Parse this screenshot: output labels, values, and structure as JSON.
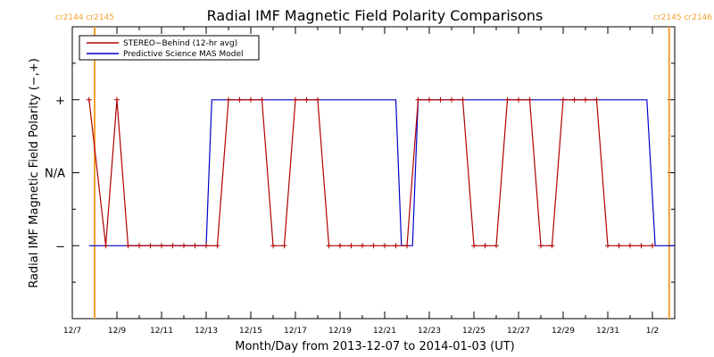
{
  "chart_data": {
    "type": "line",
    "title": "Radial IMF Magnetic Field Polarity Comparisons",
    "xlabel": "Month/Day from 2013-12-07 to 2014-01-03 (UT)",
    "ylabel": "Radial IMF Magnetic Field Polarity (−,+)",
    "x_start": "2013-12-07",
    "x_end": "2014-01-03",
    "xlim": [
      "2013-12-07",
      "2014-01-03"
    ],
    "ylim": [
      -2,
      2
    ],
    "x_tick_labels": [
      "12/7",
      "12/9",
      "12/11",
      "12/13",
      "12/15",
      "12/17",
      "12/19",
      "12/21",
      "12/23",
      "12/25",
      "12/27",
      "12/29",
      "12/31",
      "1/2"
    ],
    "y_ticks": [
      {
        "value": 1,
        "label": "+"
      },
      {
        "value": 0,
        "label": "N/A"
      },
      {
        "value": -1,
        "label": "−"
      }
    ],
    "rotation_markers": [
      {
        "date": "2013-12-08 00:00",
        "label": "cr2144 cr2145",
        "color": "#f5a030"
      },
      {
        "date": "2014-01-02 18:00",
        "label": "cr2145 cr2146",
        "color": "#f5a030"
      }
    ],
    "legend": {
      "position": "top-left"
    },
    "series": [
      {
        "name": "STEREO−Behind (12-hr avg)",
        "color": "#b00000",
        "marker": "+",
        "points": [
          [
            "2013-12-07 18:00",
            1
          ],
          [
            "2013-12-08 12:00",
            -1
          ],
          [
            "2013-12-09 00:00",
            1
          ],
          [
            "2013-12-09 12:00",
            -1
          ],
          [
            "2013-12-10 00:00",
            -1
          ],
          [
            "2013-12-10 12:00",
            -1
          ],
          [
            "2013-12-11 00:00",
            -1
          ],
          [
            "2013-12-11 12:00",
            -1
          ],
          [
            "2013-12-12 00:00",
            -1
          ],
          [
            "2013-12-12 12:00",
            -1
          ],
          [
            "2013-12-13 00:00",
            -1
          ],
          [
            "2013-12-13 12:00",
            -1
          ],
          [
            "2013-12-14 00:00",
            1
          ],
          [
            "2013-12-14 12:00",
            1
          ],
          [
            "2013-12-15 00:00",
            1
          ],
          [
            "2013-12-15 12:00",
            1
          ],
          [
            "2013-12-16 00:00",
            -1
          ],
          [
            "2013-12-16 12:00",
            -1
          ],
          [
            "2013-12-17 00:00",
            1
          ],
          [
            "2013-12-17 12:00",
            1
          ],
          [
            "2013-12-18 00:00",
            1
          ],
          [
            "2013-12-18 12:00",
            -1
          ],
          [
            "2013-12-19 00:00",
            -1
          ],
          [
            "2013-12-19 12:00",
            -1
          ],
          [
            "2013-12-20 00:00",
            -1
          ],
          [
            "2013-12-20 12:00",
            -1
          ],
          [
            "2013-12-21 00:00",
            -1
          ],
          [
            "2013-12-21 12:00",
            -1
          ],
          [
            "2013-12-22 00:00",
            -1
          ],
          [
            "2013-12-22 12:00",
            1
          ],
          [
            "2013-12-23 00:00",
            1
          ],
          [
            "2013-12-23 12:00",
            1
          ],
          [
            "2013-12-24 00:00",
            1
          ],
          [
            "2013-12-24 12:00",
            1
          ],
          [
            "2013-12-25 00:00",
            -1
          ],
          [
            "2013-12-25 12:00",
            -1
          ],
          [
            "2013-12-26 00:00",
            -1
          ],
          [
            "2013-12-26 12:00",
            1
          ],
          [
            "2013-12-27 00:00",
            1
          ],
          [
            "2013-12-27 12:00",
            1
          ],
          [
            "2013-12-28 00:00",
            -1
          ],
          [
            "2013-12-28 12:00",
            -1
          ],
          [
            "2013-12-29 00:00",
            1
          ],
          [
            "2013-12-29 12:00",
            1
          ],
          [
            "2013-12-30 00:00",
            1
          ],
          [
            "2013-12-30 12:00",
            1
          ],
          [
            "2013-12-31 00:00",
            -1
          ],
          [
            "2013-12-31 12:00",
            -1
          ],
          [
            "2014-01-01 00:00",
            -1
          ],
          [
            "2014-01-01 12:00",
            -1
          ],
          [
            "2014-01-02 00:00",
            -1
          ]
        ]
      },
      {
        "name": "Predictive Science MAS Model",
        "color": "#0000cc",
        "marker": "none",
        "points": [
          [
            "2013-12-07 18:00",
            -1
          ],
          [
            "2013-12-13 00:00",
            -1
          ],
          [
            "2013-12-13 06:00",
            1
          ],
          [
            "2013-12-21 12:00",
            1
          ],
          [
            "2013-12-21 18:00",
            -1
          ],
          [
            "2013-12-22 06:00",
            -1
          ],
          [
            "2013-12-22 12:00",
            1
          ],
          [
            "2014-01-01 18:00",
            1
          ],
          [
            "2014-01-02 03:00",
            -1
          ],
          [
            "2014-01-03 00:00",
            -1
          ]
        ]
      }
    ]
  }
}
